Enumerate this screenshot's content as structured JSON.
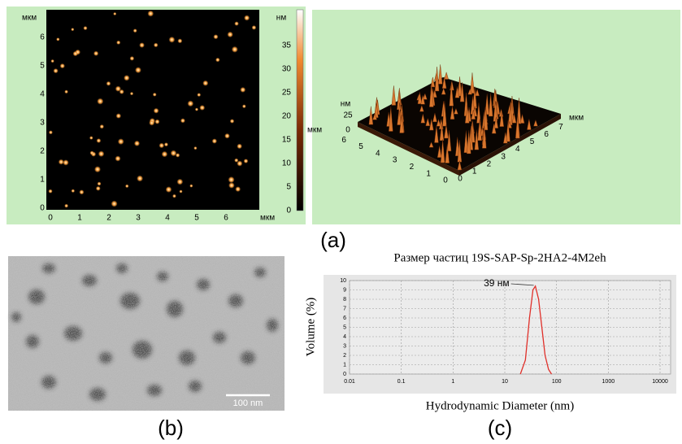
{
  "panel_a": {
    "label": "(a)",
    "map_2d": {
      "y_unit": "мкм",
      "x_unit": "мкм",
      "xticks": [
        0,
        1,
        2,
        3,
        4,
        5,
        6
      ],
      "yticks": [
        0,
        1,
        2,
        3,
        4,
        5,
        6
      ],
      "colorbar_unit": "нм",
      "colorbar_ticks": [
        0,
        5,
        10,
        15,
        20,
        25,
        30,
        35
      ]
    },
    "surface_3d": {
      "z_unit": "нм",
      "z_ticks": [
        0,
        25
      ],
      "left_unit": "мкм",
      "left_ticks": [
        6,
        5,
        4,
        3,
        2,
        1,
        0
      ],
      "right_unit": "мкм",
      "right_ticks": [
        0,
        1,
        2,
        3,
        4,
        5,
        6,
        7
      ]
    }
  },
  "panel_b": {
    "label": "(b)",
    "scale_bar": "100 nm"
  },
  "panel_c": {
    "label": "(c)"
  },
  "chart_data": {
    "type": "line",
    "title": "Размер частиц 19S-SAP-Sp-2HA2-4M2eh",
    "x_label": "Hydrodynamic Diameter (nm)",
    "y_label": "Volume (%)",
    "x": [
      20,
      25,
      30,
      35,
      39,
      45,
      52,
      60,
      70,
      80
    ],
    "values": [
      0,
      1.5,
      6,
      9,
      9.4,
      8,
      5,
      2,
      0.5,
      0
    ],
    "color": "#e0302a",
    "log_x": true,
    "grid": true,
    "xlim": [
      0.01,
      10000
    ],
    "ylim": [
      0,
      10
    ],
    "xticks": [
      0.01,
      0.1,
      1,
      10,
      100,
      1000,
      10000
    ],
    "yticks": [
      0,
      1,
      2,
      3,
      4,
      5,
      6,
      7,
      8,
      9,
      10
    ],
    "annotation": {
      "text": "39 нм",
      "x": 39,
      "y": 9.4
    }
  }
}
